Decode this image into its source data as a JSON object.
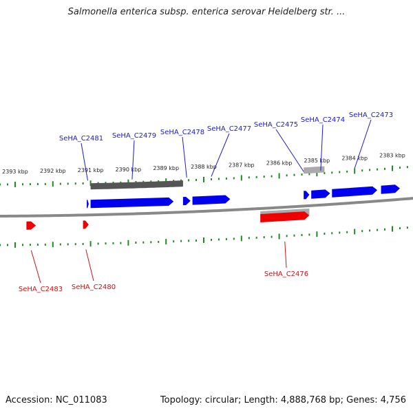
{
  "title": "Salmonella enterica subsp. enterica serovar Heidelberg str. ...",
  "footer": {
    "accession": "Accession: NC_011083",
    "summary": "Topology: circular; Length: 4,888,768 bp; Genes: 4,756"
  },
  "colors": {
    "forward_gene": "#0000ee",
    "reverse_gene": "#ee0000",
    "forward_label": "#1a1acc",
    "reverse_label": "#cc1111",
    "backbone": "#888888",
    "ticks": "#228822",
    "feature_dark": "#555555",
    "feature_light": "#aaaaaa"
  },
  "scale_labels": [
    {
      "text": "2393 kbp",
      "kbp": 2393
    },
    {
      "text": "2392 kbp",
      "kbp": 2392
    },
    {
      "text": "2391 kbp",
      "kbp": 2391
    },
    {
      "text": "2390 kbp",
      "kbp": 2390
    },
    {
      "text": "2389 kbp",
      "kbp": 2389
    },
    {
      "text": "2388 kbp",
      "kbp": 2388
    },
    {
      "text": "2387 kbp",
      "kbp": 2387
    },
    {
      "text": "2386 kbp",
      "kbp": 2386
    },
    {
      "text": "2385 kbp",
      "kbp": 2385
    },
    {
      "text": "2384 kbp",
      "kbp": 2384
    },
    {
      "text": "2383 kbp",
      "kbp": 2383
    }
  ],
  "forward_genes": [
    {
      "label": "SeHA_C2481",
      "start_kbp": 2391.1,
      "end_kbp": 2391.05
    },
    {
      "label": "SeHA_C2479",
      "start_kbp": 2391.0,
      "end_kbp": 2388.8
    },
    {
      "label": "SeHA_C2478",
      "start_kbp": 2388.55,
      "end_kbp": 2388.35
    },
    {
      "label": "SeHA_C2477",
      "start_kbp": 2388.3,
      "end_kbp": 2387.3
    },
    {
      "label": "",
      "start_kbp": 2385.35,
      "end_kbp": 2385.2
    },
    {
      "label": "SeHA_C2474",
      "start_kbp": 2385.15,
      "end_kbp": 2384.65
    },
    {
      "label": "SeHA_C2473",
      "start_kbp": 2384.6,
      "end_kbp": 2383.4
    },
    {
      "label": "",
      "start_kbp": 2383.3,
      "end_kbp": 2382.8
    }
  ],
  "reverse_genes": [
    {
      "label": "SeHA_C2483",
      "start_kbp": 2392.7,
      "end_kbp": 2392.45
    },
    {
      "label": "SeHA_C2480",
      "start_kbp": 2391.2,
      "end_kbp": 2391.05
    },
    {
      "label": "SeHA_C2476",
      "start_kbp": 2386.5,
      "end_kbp": 2385.2
    }
  ],
  "extra_labels": [
    {
      "label": "SeHA_C2475",
      "kbp": 2385.35
    }
  ]
}
